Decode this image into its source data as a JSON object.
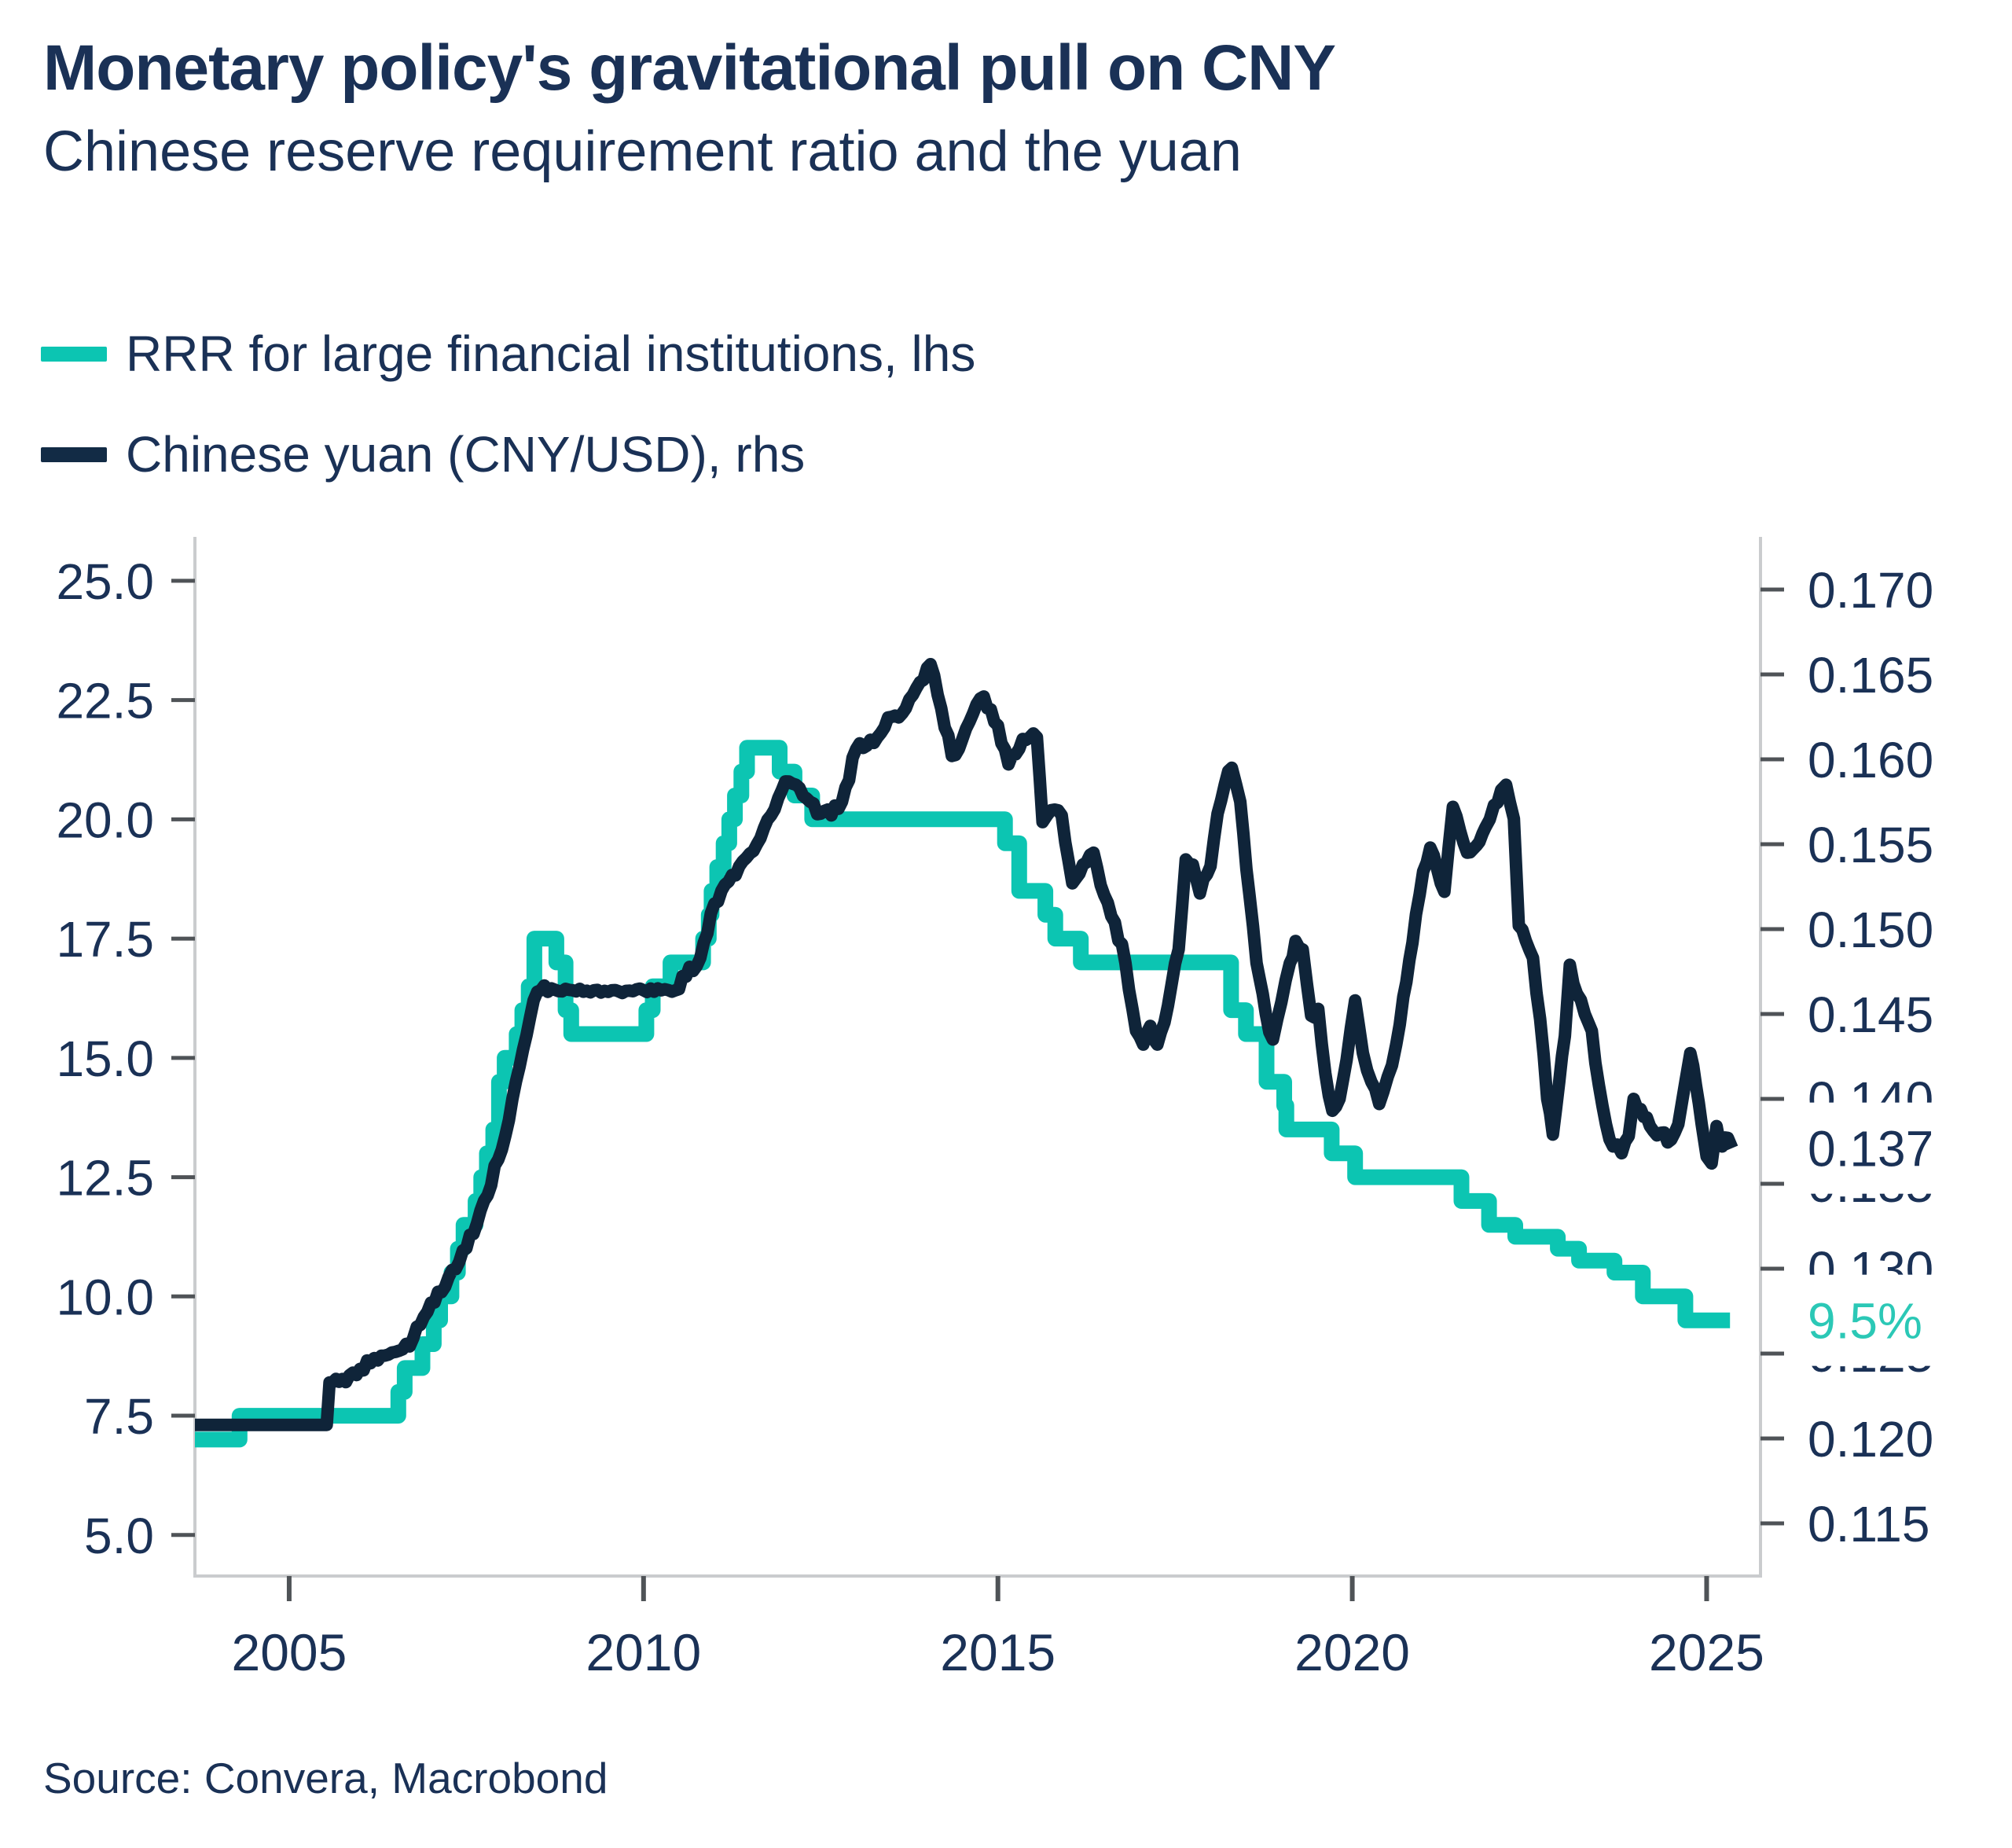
{
  "header": {
    "title": "Monetary policy's gravitational pull on CNY",
    "subtitle": "Chinese reserve requirement ratio and the yuan"
  },
  "legend": {
    "items": [
      {
        "label": "RRR for large financial institutions, lhs",
        "color": "#0CC5B2"
      },
      {
        "label": "Chinese yuan (CNY/USD), rhs",
        "color": "#122B45"
      }
    ]
  },
  "source": {
    "text": "Source: Convera, Macrobond"
  },
  "chart_data": {
    "type": "line",
    "title": "Monetary policy's gravitational pull on CNY",
    "subtitle": "Chinese reserve requirement ratio and the yuan",
    "grid": false,
    "legend_position": "top-left",
    "x_range": [
      2003.67,
      2025.76
    ],
    "x_ticks": [
      {
        "v": 2005,
        "label": "2005"
      },
      {
        "v": 2010,
        "label": "2010"
      },
      {
        "v": 2015,
        "label": "2015"
      },
      {
        "v": 2020,
        "label": "2020"
      },
      {
        "v": 2025,
        "label": "2025"
      }
    ],
    "left_axis": {
      "range": [
        4.14,
        25.92
      ],
      "ticks": [
        {
          "v": 25.0,
          "label": "25.0"
        },
        {
          "v": 22.5,
          "label": "22.5"
        },
        {
          "v": 20.0,
          "label": "20.0"
        },
        {
          "v": 17.5,
          "label": "17.5"
        },
        {
          "v": 15.0,
          "label": "15.0"
        },
        {
          "v": 12.5,
          "label": "12.5"
        },
        {
          "v": 10.0,
          "label": "10.0"
        },
        {
          "v": 7.5,
          "label": "7.5"
        },
        {
          "v": 5.0,
          "label": "5.0"
        }
      ]
    },
    "right_axis": {
      "range": [
        0.1119,
        0.1731
      ],
      "ticks": [
        {
          "v": 0.17,
          "label": "0.170"
        },
        {
          "v": 0.165,
          "label": "0.165"
        },
        {
          "v": 0.16,
          "label": "0.160"
        },
        {
          "v": 0.155,
          "label": "0.155"
        },
        {
          "v": 0.15,
          "label": "0.150"
        },
        {
          "v": 0.145,
          "label": "0.145"
        },
        {
          "v": 0.14,
          "label": "0.140"
        },
        {
          "v": 0.135,
          "label": "0.135"
        },
        {
          "v": 0.13,
          "label": "0.130"
        },
        {
          "v": 0.125,
          "label": "0.125"
        },
        {
          "v": 0.12,
          "label": "0.120"
        },
        {
          "v": 0.115,
          "label": "0.115"
        }
      ]
    },
    "series": [
      {
        "name": "RRR for large financial institutions, lhs",
        "axis": "left",
        "render": "step",
        "color": "#0CC5B2",
        "width": 20,
        "points": [
          [
            2003.67,
            7.0
          ],
          [
            2004.3,
            7.5
          ],
          [
            2006.54,
            8.0
          ],
          [
            2006.63,
            8.5
          ],
          [
            2006.88,
            9.0
          ],
          [
            2007.04,
            9.5
          ],
          [
            2007.13,
            10.0
          ],
          [
            2007.29,
            10.5
          ],
          [
            2007.38,
            11.0
          ],
          [
            2007.46,
            11.5
          ],
          [
            2007.63,
            12.0
          ],
          [
            2007.71,
            12.5
          ],
          [
            2007.79,
            13.0
          ],
          [
            2007.88,
            13.5
          ],
          [
            2007.96,
            14.5
          ],
          [
            2008.04,
            15.0
          ],
          [
            2008.21,
            15.5
          ],
          [
            2008.29,
            16.0
          ],
          [
            2008.38,
            16.5
          ],
          [
            2008.46,
            17.5
          ],
          [
            2008.77,
            17.0
          ],
          [
            2008.9,
            16.0
          ],
          [
            2008.98,
            15.5
          ],
          [
            2010.04,
            16.0
          ],
          [
            2010.13,
            16.5
          ],
          [
            2010.38,
            17.0
          ],
          [
            2010.84,
            17.5
          ],
          [
            2010.92,
            18.0
          ],
          [
            2010.96,
            18.5
          ],
          [
            2011.04,
            19.0
          ],
          [
            2011.13,
            19.5
          ],
          [
            2011.21,
            20.0
          ],
          [
            2011.29,
            20.5
          ],
          [
            2011.38,
            21.0
          ],
          [
            2011.46,
            21.5
          ],
          [
            2011.92,
            21.0
          ],
          [
            2012.13,
            20.5
          ],
          [
            2012.38,
            20.0
          ],
          [
            2015.1,
            19.5
          ],
          [
            2015.3,
            18.5
          ],
          [
            2015.67,
            18.0
          ],
          [
            2015.81,
            17.5
          ],
          [
            2016.17,
            17.0
          ],
          [
            2018.29,
            16.0
          ],
          [
            2018.5,
            15.5
          ],
          [
            2018.79,
            14.5
          ],
          [
            2019.04,
            14.0
          ],
          [
            2019.07,
            13.5
          ],
          [
            2019.71,
            13.0
          ],
          [
            2020.04,
            12.5
          ],
          [
            2021.54,
            12.0
          ],
          [
            2021.93,
            11.5
          ],
          [
            2022.3,
            11.25
          ],
          [
            2022.9,
            11.0
          ],
          [
            2023.2,
            10.75
          ],
          [
            2023.7,
            10.5
          ],
          [
            2024.1,
            10.0
          ],
          [
            2024.7,
            9.5
          ],
          [
            2025.33,
            9.5
          ]
        ]
      },
      {
        "name": "Chinese yuan (CNY/USD), rhs",
        "axis": "right",
        "render": "line",
        "color": "#0F2439",
        "width": 16,
        "noise": true,
        "points": [
          [
            2003.67,
            0.1208
          ],
          [
            2005.53,
            0.1208
          ],
          [
            2005.57,
            0.1233
          ],
          [
            2005.75,
            0.1235
          ],
          [
            2006.0,
            0.1241
          ],
          [
            2006.25,
            0.1246
          ],
          [
            2006.5,
            0.1251
          ],
          [
            2006.75,
            0.1259
          ],
          [
            2007.0,
            0.128
          ],
          [
            2007.25,
            0.1295
          ],
          [
            2007.5,
            0.1312
          ],
          [
            2007.75,
            0.134
          ],
          [
            2008.0,
            0.137
          ],
          [
            2008.15,
            0.14
          ],
          [
            2008.3,
            0.1429
          ],
          [
            2008.45,
            0.1458
          ],
          [
            2008.55,
            0.1464
          ],
          [
            2009.0,
            0.1464
          ],
          [
            2009.5,
            0.1463
          ],
          [
            2010.0,
            0.1464
          ],
          [
            2010.45,
            0.1464
          ],
          [
            2010.6,
            0.1472
          ],
          [
            2010.8,
            0.1483
          ],
          [
            2011.0,
            0.1515
          ],
          [
            2011.2,
            0.1528
          ],
          [
            2011.4,
            0.154
          ],
          [
            2011.6,
            0.155
          ],
          [
            2011.8,
            0.1567
          ],
          [
            2012.0,
            0.1587
          ],
          [
            2012.15,
            0.1585
          ],
          [
            2012.3,
            0.1577
          ],
          [
            2012.5,
            0.1568
          ],
          [
            2012.65,
            0.1567
          ],
          [
            2012.8,
            0.1575
          ],
          [
            2013.0,
            0.1606
          ],
          [
            2013.15,
            0.1608
          ],
          [
            2013.3,
            0.1613
          ],
          [
            2013.5,
            0.1625
          ],
          [
            2013.7,
            0.163
          ],
          [
            2013.85,
            0.1642
          ],
          [
            2014.05,
            0.1656
          ],
          [
            2014.2,
            0.163
          ],
          [
            2014.35,
            0.1602
          ],
          [
            2014.5,
            0.1612
          ],
          [
            2014.65,
            0.1627
          ],
          [
            2014.8,
            0.1637
          ],
          [
            2015.0,
            0.162
          ],
          [
            2015.15,
            0.1597
          ],
          [
            2015.35,
            0.1612
          ],
          [
            2015.55,
            0.1613
          ],
          [
            2015.63,
            0.1563
          ],
          [
            2015.75,
            0.157
          ],
          [
            2015.9,
            0.1567
          ],
          [
            2016.05,
            0.1527
          ],
          [
            2016.2,
            0.1538
          ],
          [
            2016.35,
            0.1545
          ],
          [
            2016.5,
            0.152
          ],
          [
            2016.65,
            0.1504
          ],
          [
            2016.8,
            0.148
          ],
          [
            2016.95,
            0.144
          ],
          [
            2017.05,
            0.1432
          ],
          [
            2017.15,
            0.1443
          ],
          [
            2017.25,
            0.1432
          ],
          [
            2017.4,
            0.1455
          ],
          [
            2017.55,
            0.1488
          ],
          [
            2017.65,
            0.1541
          ],
          [
            2017.75,
            0.1538
          ],
          [
            2017.85,
            0.1521
          ],
          [
            2018.0,
            0.1537
          ],
          [
            2018.1,
            0.1568
          ],
          [
            2018.2,
            0.1585
          ],
          [
            2018.3,
            0.1595
          ],
          [
            2018.42,
            0.1575
          ],
          [
            2018.55,
            0.152
          ],
          [
            2018.65,
            0.148
          ],
          [
            2018.78,
            0.145
          ],
          [
            2018.88,
            0.1435
          ],
          [
            2019.0,
            0.1457
          ],
          [
            2019.12,
            0.148
          ],
          [
            2019.2,
            0.1493
          ],
          [
            2019.3,
            0.1488
          ],
          [
            2019.42,
            0.1449
          ],
          [
            2019.52,
            0.1453
          ],
          [
            2019.62,
            0.1415
          ],
          [
            2019.72,
            0.1393
          ],
          [
            2019.82,
            0.14
          ],
          [
            2019.92,
            0.1423
          ],
          [
            2020.04,
            0.1458
          ],
          [
            2020.15,
            0.1427
          ],
          [
            2020.27,
            0.141
          ],
          [
            2020.38,
            0.1397
          ],
          [
            2020.5,
            0.1413
          ],
          [
            2020.62,
            0.1432
          ],
          [
            2020.72,
            0.146
          ],
          [
            2020.85,
            0.1492
          ],
          [
            2021.0,
            0.1534
          ],
          [
            2021.1,
            0.1548
          ],
          [
            2021.2,
            0.1535
          ],
          [
            2021.3,
            0.1522
          ],
          [
            2021.42,
            0.1572
          ],
          [
            2021.52,
            0.1558
          ],
          [
            2021.62,
            0.1545
          ],
          [
            2021.75,
            0.1549
          ],
          [
            2021.88,
            0.156
          ],
          [
            2022.0,
            0.1573
          ],
          [
            2022.1,
            0.1582
          ],
          [
            2022.17,
            0.1585
          ],
          [
            2022.28,
            0.1565
          ],
          [
            2022.35,
            0.1502
          ],
          [
            2022.45,
            0.1493
          ],
          [
            2022.55,
            0.1483
          ],
          [
            2022.65,
            0.1447
          ],
          [
            2022.75,
            0.14
          ],
          [
            2022.83,
            0.1379
          ],
          [
            2022.92,
            0.141
          ],
          [
            2023.0,
            0.1437
          ],
          [
            2023.07,
            0.1479
          ],
          [
            2023.17,
            0.1462
          ],
          [
            2023.28,
            0.145
          ],
          [
            2023.38,
            0.144
          ],
          [
            2023.48,
            0.1408
          ],
          [
            2023.58,
            0.1385
          ],
          [
            2023.68,
            0.1372
          ],
          [
            2023.8,
            0.1368
          ],
          [
            2023.9,
            0.1378
          ],
          [
            2023.97,
            0.14
          ],
          [
            2024.07,
            0.1394
          ],
          [
            2024.2,
            0.1384
          ],
          [
            2024.35,
            0.138
          ],
          [
            2024.5,
            0.1376
          ],
          [
            2024.6,
            0.1385
          ],
          [
            2024.7,
            0.141
          ],
          [
            2024.77,
            0.1427
          ],
          [
            2024.85,
            0.1408
          ],
          [
            2024.93,
            0.1385
          ],
          [
            2025.0,
            0.1366
          ],
          [
            2025.07,
            0.1362
          ],
          [
            2025.14,
            0.1384
          ],
          [
            2025.22,
            0.1372
          ],
          [
            2025.3,
            0.1377
          ],
          [
            2025.36,
            0.1371
          ]
        ]
      }
    ],
    "callouts": [
      {
        "text": "0.137",
        "axis": "right",
        "value": 0.1371,
        "color": "#1A3156"
      },
      {
        "text": "9.5%",
        "axis": "left",
        "value": 9.5,
        "color": "#2BC8B6"
      }
    ],
    "style": {
      "axis_line_color": "#CACCCE",
      "tick_color": "#4F5357",
      "label_color": "#1A3156",
      "background": "#FFFFFF"
    }
  }
}
